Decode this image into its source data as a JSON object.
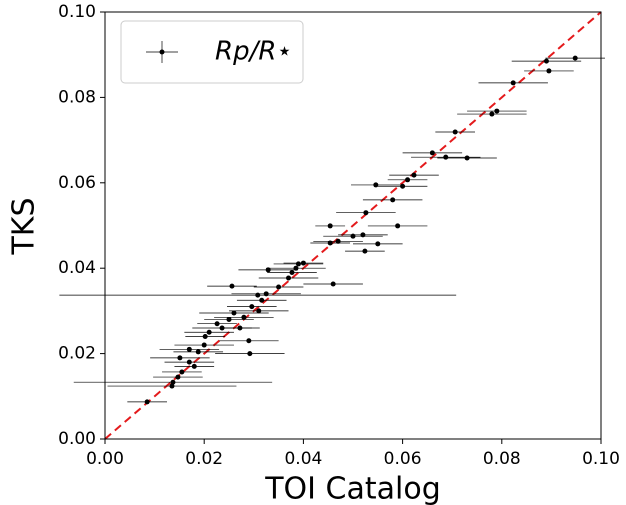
{
  "chart_data": {
    "type": "scatter",
    "x_label": "TOI Catalog",
    "y_label": "TKS",
    "xlim": [
      0,
      0.1
    ],
    "ylim": [
      0,
      0.1
    ],
    "xticks": [
      {
        "value": 0,
        "label": "0.00"
      },
      0.02,
      0.04,
      0.06,
      0.08,
      {
        "value": 0.1,
        "label": "0.10"
      }
    ],
    "yticks": [
      {
        "value": 0,
        "label": "0.00"
      },
      0.02,
      0.04,
      0.06,
      0.08,
      {
        "value": 0.1,
        "label": "0.10"
      }
    ],
    "legend": "upper left",
    "grid": false,
    "series": [
      {
        "name": "Rp/R⋆",
        "color": "#000000",
        "x": [
          0.0085,
          0.0135,
          0.0137,
          0.0147,
          0.0155,
          0.0151,
          0.017,
          0.018,
          0.017,
          0.0188,
          0.02,
          0.0202,
          0.021,
          0.0226,
          0.0236,
          0.025,
          0.026,
          0.0272,
          0.028,
          0.029,
          0.0292,
          0.0296,
          0.031,
          0.0316,
          0.0325,
          0.0308,
          0.0256,
          0.0329,
          0.035,
          0.037,
          0.0377,
          0.0385,
          0.039,
          0.04,
          0.046,
          0.0454,
          0.0454,
          0.047,
          0.05,
          0.052,
          0.0524,
          0.055,
          0.0526,
          0.059,
          0.0546,
          0.058,
          0.06,
          0.061,
          0.0623,
          0.066,
          0.0687,
          0.0706,
          0.073,
          0.078,
          0.079,
          0.0823,
          0.089,
          0.0895,
          0.0948
        ],
        "values": [
          0.0087,
          0.0124,
          0.0133,
          0.0145,
          0.0157,
          0.019,
          0.018,
          0.017,
          0.021,
          0.0204,
          0.022,
          0.024,
          0.025,
          0.027,
          0.026,
          0.028,
          0.0295,
          0.026,
          0.0285,
          0.023,
          0.02,
          0.031,
          0.03,
          0.0325,
          0.034,
          0.0337,
          0.0358,
          0.0396,
          0.0356,
          0.0377,
          0.039,
          0.04,
          0.041,
          0.0412,
          0.0363,
          0.0459,
          0.0499,
          0.0463,
          0.0475,
          0.0478,
          0.044,
          0.0457,
          0.053,
          0.0499,
          0.0595,
          0.056,
          0.0592,
          0.0607,
          0.0618,
          0.067,
          0.066,
          0.0719,
          0.0658,
          0.0761,
          0.0768,
          0.0834,
          0.0885,
          0.0862,
          0.0892
        ],
        "xerr": [
          0.004,
          0.013,
          0.02,
          0.005,
          0.004,
          0.006,
          0.005,
          0.004,
          0.006,
          0.005,
          0.006,
          0.004,
          0.005,
          0.004,
          0.006,
          0.005,
          0.007,
          0.004,
          0.006,
          0.006,
          0.007,
          0.005,
          0.006,
          0.005,
          0.007,
          0.04,
          0.005,
          0.006,
          0.005,
          0.006,
          0.005,
          0.006,
          0.005,
          0.004,
          0.006,
          0.004,
          0.003,
          0.005,
          0.006,
          0.005,
          0.004,
          0.005,
          0.006,
          0.006,
          0.005,
          0.006,
          0.005,
          0.004,
          0.005,
          0.006,
          0.007,
          0.004,
          0.006,
          0.007,
          0.006,
          0.007,
          0.007,
          0.005,
          0.006
        ]
      }
    ]
  }
}
